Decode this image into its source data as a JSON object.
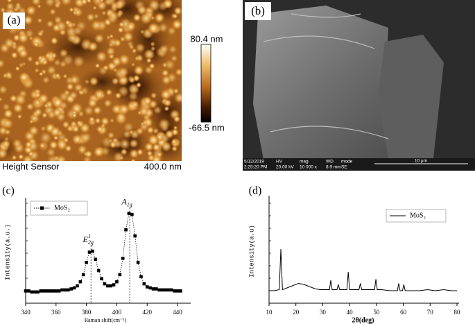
{
  "panels": {
    "a": {
      "panel_label": "(a)",
      "colorbar_max": "80.4 nm",
      "colorbar_min": "-66.5 nm",
      "caption_left": "Height Sensor",
      "caption_right": "400.0 nm"
    },
    "b": {
      "panel_label": "(b)",
      "info_bar": [
        [
          "5/12/2019",
          "2:25:20 PM"
        ],
        [
          "HV",
          "20.00 kV"
        ],
        [
          "mag",
          "10 000 x"
        ],
        [
          "WD",
          "8.9 mm"
        ],
        [
          "mode",
          "SE"
        ]
      ],
      "scale_label": "10 μm"
    }
  },
  "chart_data": [
    {
      "type": "scatter-line",
      "panel_label": "(c)",
      "x_label": "Raman shift(cm⁻¹)",
      "y_label": "Intensity(a.u.)",
      "xlim": [
        340,
        445
      ],
      "xticks": [
        340,
        360,
        380,
        400,
        420,
        440
      ],
      "ylim": [
        0,
        100
      ],
      "peaks": [
        {
          "base": "E",
          "sup": "1",
          "sub": "2g",
          "x": 383
        },
        {
          "base": "A",
          "sub": "1g",
          "x": 408.5
        }
      ],
      "series": [
        {
          "name": "MoS₂",
          "color": "#000000",
          "x": [
            340,
            342,
            344,
            346,
            348,
            350,
            352,
            354,
            356,
            358,
            360,
            362,
            364,
            366,
            368,
            370,
            372,
            374,
            376,
            378,
            380,
            382,
            384,
            386,
            388,
            390,
            392,
            394,
            396,
            398,
            400,
            402,
            404,
            406,
            408,
            410,
            412,
            414,
            416,
            418,
            420,
            422,
            424,
            426,
            428,
            430,
            432,
            434,
            436,
            438,
            440,
            442
          ],
          "values": [
            12,
            12,
            11,
            11,
            11,
            12,
            12,
            12,
            12,
            12,
            12,
            12,
            13,
            13,
            13,
            14,
            15,
            17,
            21,
            28,
            40,
            50,
            51,
            43,
            32,
            24,
            19,
            17,
            17,
            18,
            21,
            28,
            44,
            72,
            88,
            87,
            66,
            40,
            26,
            19,
            16,
            15,
            14,
            14,
            13,
            13,
            13,
            13,
            13,
            12,
            12,
            12
          ]
        }
      ]
    },
    {
      "type": "line",
      "panel_label": "(d)",
      "x_label": "2θ(deg)",
      "y_label": "Intensity(a.u)",
      "xlim": [
        10,
        80
      ],
      "xticks": [
        10,
        20,
        30,
        40,
        50,
        60,
        70,
        80
      ],
      "ylim": [
        0,
        100
      ],
      "series": [
        {
          "name": "MoS₂",
          "color": "#000000",
          "x": [
            10,
            12,
            13.8,
            14.4,
            15,
            17,
            19,
            21,
            23,
            25,
            27,
            29,
            31,
            32.5,
            33,
            33.5,
            35.3,
            35.8,
            36.3,
            38,
            39,
            39.5,
            40,
            42,
            43.5,
            44,
            44.5,
            46,
            49.3,
            49.8,
            50.3,
            52,
            55,
            57.8,
            58.3,
            58.8,
            59.7,
            60.2,
            60.7,
            63,
            66,
            69,
            72,
            75,
            78,
            80
          ],
          "values": [
            12,
            12,
            13,
            52,
            13,
            15,
            17,
            19,
            18,
            16,
            14,
            13,
            13,
            13,
            22,
            13,
            13,
            18,
            13,
            13,
            13,
            30,
            13,
            13,
            13,
            19,
            13,
            13,
            13,
            23,
            13,
            13,
            12,
            12,
            19,
            12,
            12,
            18,
            12,
            12,
            12,
            13,
            12,
            13,
            12,
            12
          ]
        }
      ]
    }
  ]
}
